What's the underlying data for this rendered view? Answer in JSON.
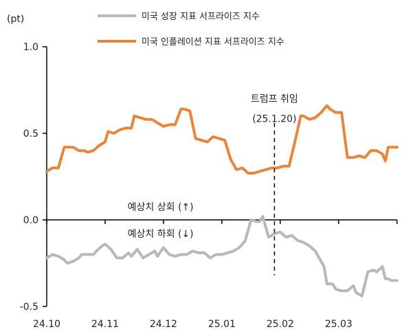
{
  "chart_data": {
    "type": "line",
    "unit_label": "(pt)",
    "ylim": [
      -0.5,
      1.0
    ],
    "yticks": [
      {
        "value": 1.0,
        "label": "1.0"
      },
      {
        "value": 0.5,
        "label": "0.5"
      },
      {
        "value": 0.0,
        "label": "0.0"
      },
      {
        "value": -0.5,
        "label": "-0.5"
      }
    ],
    "xlim": [
      0,
      120
    ],
    "xticks": [
      {
        "value": 0,
        "label": "24.10"
      },
      {
        "value": 20,
        "label": "24.11"
      },
      {
        "value": 40,
        "label": "24.12"
      },
      {
        "value": 60,
        "label": "25.01"
      },
      {
        "value": 80,
        "label": "25.02"
      },
      {
        "value": 100,
        "label": "25.03"
      }
    ],
    "legend_position": "top-center",
    "series": [
      {
        "name": "미국 성장 지표 서프라이즈 지수",
        "color": "#b8b8b8",
        "x": [
          0,
          2,
          4,
          6,
          7,
          9,
          11,
          12,
          14,
          16,
          17,
          19,
          20,
          22,
          24,
          26,
          28,
          29,
          31,
          33,
          35,
          37,
          38,
          40,
          42,
          44,
          46,
          48,
          50,
          52,
          54,
          56,
          58,
          60,
          62,
          64,
          66,
          68,
          70,
          72,
          73,
          74,
          76,
          78,
          80,
          82,
          84,
          86,
          88,
          90,
          92,
          94,
          95,
          96,
          98,
          99,
          101,
          103,
          105,
          106,
          108,
          110,
          112,
          113,
          115,
          116,
          117,
          118,
          120
        ],
        "values": [
          -0.22,
          -0.2,
          -0.21,
          -0.23,
          -0.25,
          -0.24,
          -0.22,
          -0.2,
          -0.2,
          -0.2,
          -0.18,
          -0.15,
          -0.14,
          -0.17,
          -0.22,
          -0.22,
          -0.19,
          -0.21,
          -0.17,
          -0.22,
          -0.2,
          -0.18,
          -0.21,
          -0.16,
          -0.2,
          -0.21,
          -0.2,
          -0.2,
          -0.18,
          -0.19,
          -0.19,
          -0.22,
          -0.2,
          -0.2,
          -0.19,
          -0.18,
          -0.16,
          -0.12,
          0.0,
          -0.01,
          -0.01,
          0.02,
          -0.1,
          -0.08,
          -0.07,
          -0.1,
          -0.09,
          -0.12,
          -0.13,
          -0.15,
          -0.18,
          -0.24,
          -0.27,
          -0.37,
          -0.37,
          -0.4,
          -0.41,
          -0.41,
          -0.38,
          -0.42,
          -0.44,
          -0.3,
          -0.29,
          -0.3,
          -0.27,
          -0.34,
          -0.34,
          -0.35,
          -0.35
        ]
      },
      {
        "name": "미국 인플레이션 지표 서프라이즈 지수",
        "color": "#e8853a",
        "x": [
          0,
          2,
          4,
          6,
          7,
          9,
          11,
          13,
          14,
          16,
          18,
          20,
          21,
          23,
          25,
          27,
          29,
          30,
          32,
          34,
          36,
          38,
          40,
          42,
          44,
          46,
          47,
          49,
          51,
          53,
          55,
          57,
          59,
          61,
          63,
          65,
          67,
          69,
          71,
          73,
          75,
          77,
          79,
          81,
          83,
          85,
          87,
          88,
          90,
          92,
          94,
          96,
          97,
          99,
          101,
          103,
          105,
          107,
          109,
          111,
          113,
          115,
          116,
          117,
          118,
          120
        ],
        "values": [
          0.28,
          0.3,
          0.3,
          0.42,
          0.42,
          0.42,
          0.4,
          0.4,
          0.39,
          0.4,
          0.43,
          0.45,
          0.51,
          0.5,
          0.52,
          0.53,
          0.53,
          0.6,
          0.59,
          0.58,
          0.58,
          0.56,
          0.54,
          0.55,
          0.55,
          0.64,
          0.64,
          0.63,
          0.47,
          0.46,
          0.45,
          0.48,
          0.47,
          0.46,
          0.35,
          0.29,
          0.3,
          0.27,
          0.27,
          0.28,
          0.29,
          0.3,
          0.3,
          0.31,
          0.31,
          0.45,
          0.6,
          0.6,
          0.58,
          0.59,
          0.62,
          0.66,
          0.64,
          0.62,
          0.62,
          0.36,
          0.36,
          0.37,
          0.36,
          0.4,
          0.4,
          0.38,
          0.34,
          0.42,
          0.42,
          0.42
        ]
      }
    ],
    "annotations": {
      "event_label": "트럼프 취임",
      "event_date": "(25.1.20)",
      "event_x": 78,
      "above_label": "예상치 상회 (↑)",
      "below_label": "예상치 하회 (↓)"
    }
  }
}
